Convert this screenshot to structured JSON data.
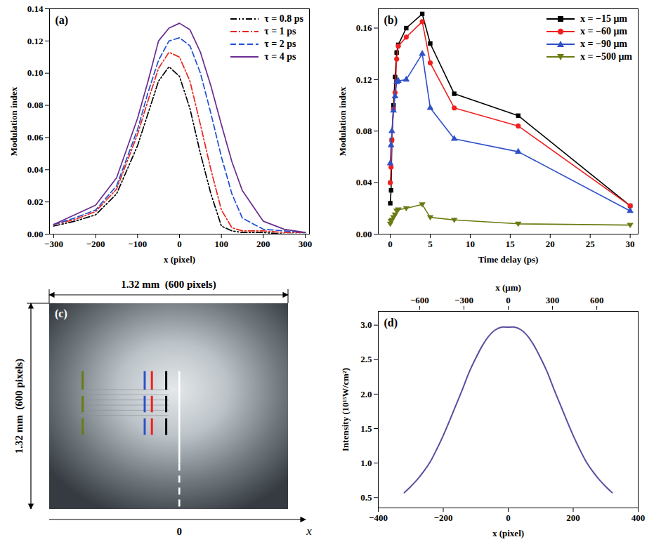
{
  "chart_data": [
    {
      "type": "line",
      "title": "(a)",
      "x_label": "x (pixel)",
      "y_label": "Modulation index",
      "x": [
        -300,
        -250,
        -200,
        -150,
        -100,
        -75,
        -50,
        -25,
        0,
        25,
        50,
        75,
        100,
        125,
        150,
        200,
        250,
        300
      ],
      "xlim": [
        -310,
        310
      ],
      "xticks": [
        -300,
        -200,
        -100,
        0,
        100,
        200,
        300
      ],
      "ylim": [
        0,
        0.14
      ],
      "yticks": [
        {
          "value": 0,
          "label": "0.00"
        },
        {
          "value": 0.02,
          "label": "0.02"
        },
        {
          "value": 0.04,
          "label": "0.04"
        },
        {
          "value": 0.06,
          "label": "0.06"
        },
        {
          "value": 0.08,
          "label": "0.08"
        },
        {
          "value": 0.1,
          "label": "0.10"
        },
        {
          "value": 0.12,
          "label": "0.12"
        },
        {
          "value": 0.14,
          "label": "0.14"
        }
      ],
      "legend": "top-right",
      "series": [
        {
          "name": "τ = 0.8 ps",
          "color": "#000000",
          "line_style": "dash-dot-dot",
          "values": [
            0.005,
            0.008,
            0.012,
            0.025,
            0.055,
            0.075,
            0.095,
            0.104,
            0.098,
            0.078,
            0.05,
            0.025,
            0.005,
            0.002,
            0.001,
            0.001,
            0.0,
            0.0
          ]
        },
        {
          "name": "τ = 1 ps",
          "color": "#e8261c",
          "line_style": "dash-dot",
          "values": [
            0.006,
            0.009,
            0.014,
            0.028,
            0.062,
            0.083,
            0.103,
            0.113,
            0.11,
            0.095,
            0.068,
            0.04,
            0.015,
            0.004,
            0.002,
            0.002,
            0.001,
            0.001
          ]
        },
        {
          "name": "τ = 2 ps",
          "color": "#2050d0",
          "line_style": "dashed",
          "values": [
            0.006,
            0.01,
            0.015,
            0.03,
            0.065,
            0.088,
            0.108,
            0.12,
            0.122,
            0.117,
            0.1,
            0.075,
            0.048,
            0.025,
            0.01,
            0.003,
            0.002,
            0.001
          ]
        },
        {
          "name": "τ = 4 ps",
          "color": "#6a2c91",
          "line_style": "solid",
          "values": [
            0.006,
            0.012,
            0.018,
            0.035,
            0.072,
            0.095,
            0.12,
            0.128,
            0.131,
            0.127,
            0.113,
            0.092,
            0.068,
            0.045,
            0.027,
            0.008,
            0.003,
            0.001
          ]
        }
      ]
    },
    {
      "type": "line",
      "title": "(b)",
      "x_label": "Time delay (ps)",
      "y_label": "Modulation index",
      "x": [
        0,
        0.1,
        0.2,
        0.4,
        0.6,
        0.8,
        1,
        2,
        4,
        5,
        8,
        16,
        30
      ],
      "xlim": [
        -1.5,
        31
      ],
      "xticks": [
        0,
        5,
        10,
        15,
        20,
        25,
        30
      ],
      "ylim": [
        0,
        0.175
      ],
      "yticks": [
        {
          "value": 0,
          "label": "0.00"
        },
        {
          "value": 0.04,
          "label": "0.04"
        },
        {
          "value": 0.08,
          "label": "0.08"
        },
        {
          "value": 0.12,
          "label": "0.12"
        },
        {
          "value": 0.16,
          "label": "0.16"
        }
      ],
      "legend": "top-right",
      "series": [
        {
          "name": "x = −15 μm",
          "color": "#000000",
          "marker": "square",
          "line_style": "solid",
          "values": [
            0.024,
            0.034,
            0.073,
            0.1,
            0.122,
            0.141,
            0.147,
            0.16,
            0.171,
            0.148,
            0.109,
            0.092,
            0.022
          ]
        },
        {
          "name": "x = −60 μm",
          "color": "#f02020",
          "marker": "circle",
          "line_style": "solid",
          "values": [
            0.04,
            0.052,
            0.073,
            0.097,
            0.11,
            0.136,
            0.146,
            0.153,
            0.165,
            0.133,
            0.098,
            0.084,
            0.022
          ]
        },
        {
          "name": "x = −90 μm",
          "color": "#3050c8",
          "marker": "triangle",
          "line_style": "solid",
          "values": [
            0.055,
            0.069,
            0.08,
            0.096,
            0.107,
            0.118,
            0.119,
            0.12,
            0.14,
            0.098,
            0.074,
            0.064,
            0.018
          ]
        },
        {
          "name": "x = −500 μm",
          "color": "#6b7a12",
          "marker": "triangle-down",
          "line_style": "solid",
          "values": [
            0.008,
            0.01,
            0.011,
            0.013,
            0.015,
            0.018,
            0.019,
            0.02,
            0.023,
            0.013,
            0.011,
            0.008,
            0.007
          ]
        }
      ]
    },
    {
      "type": "image",
      "title": "(c)",
      "width_label": "1.32 mm  (600 pixels)",
      "height_label": "1.32 mm  (600 pixels)",
      "x_label": "x",
      "origin_label": "0"
    },
    {
      "type": "line",
      "title": "(d)",
      "x_label": "x (pixel)",
      "x2_label": "x (μm)",
      "y_label": "Intensity (10¹⁵W/cm²)",
      "x": [
        -320,
        -300,
        -280,
        -260,
        -240,
        -220,
        -200,
        -180,
        -160,
        -140,
        -120,
        -100,
        -80,
        -60,
        -40,
        -20,
        0,
        20,
        40,
        60,
        80,
        100,
        120,
        140,
        160,
        180,
        200,
        220,
        240,
        260,
        280,
        300,
        320
      ],
      "values": [
        0.57,
        0.66,
        0.76,
        0.88,
        1.02,
        1.2,
        1.4,
        1.62,
        1.85,
        2.08,
        2.32,
        2.52,
        2.7,
        2.84,
        2.93,
        2.97,
        2.97,
        2.97,
        2.93,
        2.84,
        2.7,
        2.52,
        2.32,
        2.08,
        1.85,
        1.62,
        1.4,
        1.2,
        1.02,
        0.88,
        0.76,
        0.66,
        0.57
      ],
      "color": "#5a4fa0",
      "xlim": [
        -400,
        400
      ],
      "xticks": [
        -400,
        -200,
        0,
        200,
        400
      ],
      "x2lim": [
        -880,
        880
      ],
      "x2ticks": [
        -600,
        -300,
        0,
        300,
        600
      ],
      "ylim": [
        0.35,
        3.2
      ],
      "yticks": [
        {
          "value": 0.5,
          "label": "0.5"
        },
        {
          "value": 1,
          "label": "1.0"
        },
        {
          "value": 1.5,
          "label": "1.5"
        },
        {
          "value": 2,
          "label": "2.0"
        },
        {
          "value": 2.5,
          "label": "2.5"
        },
        {
          "value": 3,
          "label": "3.0"
        }
      ]
    }
  ]
}
